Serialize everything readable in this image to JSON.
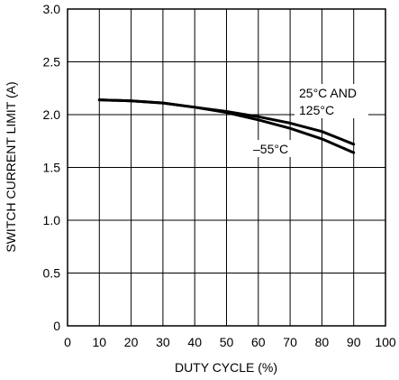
{
  "chart_data": {
    "type": "line",
    "title": "",
    "xlabel": "DUTY CYCLE (%)",
    "ylabel": "SWITCH CURRENT LIMIT (A)",
    "xlim": [
      0,
      100
    ],
    "ylim": [
      0,
      3.0
    ],
    "x_ticks": [
      "0",
      "10",
      "20",
      "30",
      "40",
      "50",
      "60",
      "70",
      "80",
      "90",
      "100"
    ],
    "y_ticks": [
      "0",
      "0.5",
      "1.0",
      "1.5",
      "2.0",
      "2.5",
      "3.0"
    ],
    "grid": true,
    "series": [
      {
        "name": "25°C AND 125°C",
        "x": [
          10,
          20,
          30,
          40,
          50,
          60,
          70,
          80,
          90
        ],
        "y": [
          2.14,
          2.13,
          2.11,
          2.07,
          2.03,
          1.98,
          1.92,
          1.84,
          1.72
        ]
      },
      {
        "name": "–55°C",
        "x": [
          10,
          20,
          30,
          40,
          50,
          60,
          70,
          80,
          90
        ],
        "y": [
          2.14,
          2.13,
          2.11,
          2.07,
          2.02,
          1.95,
          1.87,
          1.77,
          1.64
        ]
      }
    ],
    "annotations": {
      "upper_line1": "25°C AND",
      "upper_line2": "125°C",
      "lower": "–55°C"
    }
  }
}
